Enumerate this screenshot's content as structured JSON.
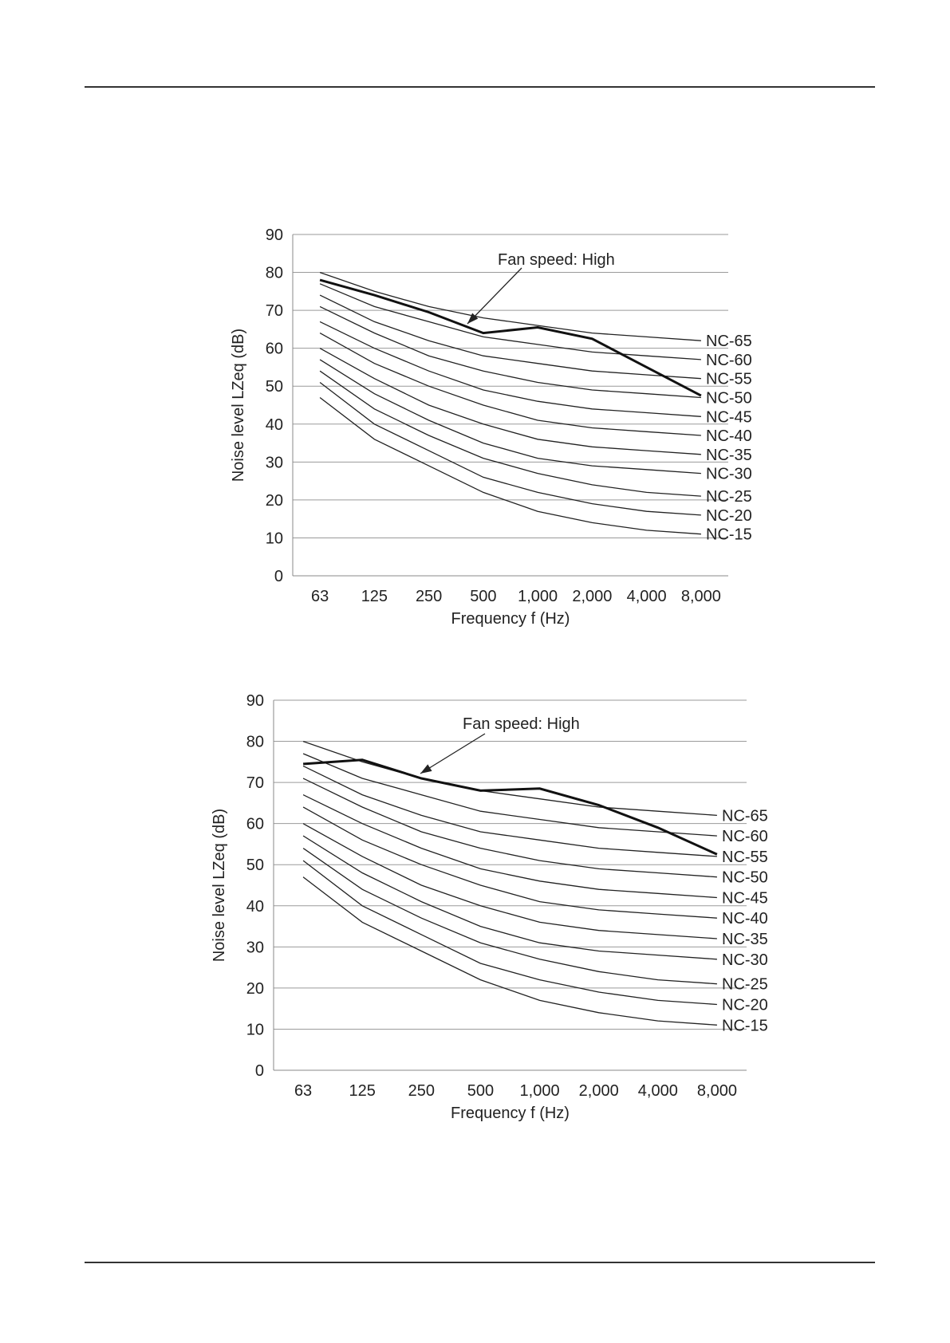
{
  "chart_data": [
    {
      "type": "line",
      "title": "",
      "xlabel": "Frequency f (Hz)",
      "ylabel": "Noise level LZeq (dB)",
      "ylim": [
        0,
        90
      ],
      "yticks": [
        "0",
        "10",
        "20",
        "30",
        "40",
        "50",
        "60",
        "70",
        "80",
        "90"
      ],
      "categories": [
        "63",
        "125",
        "250",
        "500",
        "1,000",
        "2,000",
        "4,000",
        "8,000"
      ],
      "grid": true,
      "annotation": "Fan speed: High",
      "measured": [
        78,
        74,
        69.5,
        64,
        65.5,
        62.5,
        55,
        47.5
      ],
      "series": [
        {
          "name": "NC-65",
          "values": [
            80,
            75,
            71,
            68,
            66,
            64,
            63,
            62
          ]
        },
        {
          "name": "NC-60",
          "values": [
            77,
            71,
            67,
            63,
            61,
            59,
            58,
            57
          ]
        },
        {
          "name": "NC-55",
          "values": [
            74,
            67,
            62,
            58,
            56,
            54,
            53,
            52
          ]
        },
        {
          "name": "NC-50",
          "values": [
            71,
            64,
            58,
            54,
            51,
            49,
            48,
            47
          ]
        },
        {
          "name": "NC-45",
          "values": [
            67,
            60,
            54,
            49,
            46,
            44,
            43,
            42
          ]
        },
        {
          "name": "NC-40",
          "values": [
            64,
            56,
            50,
            45,
            41,
            39,
            38,
            37
          ]
        },
        {
          "name": "NC-35",
          "values": [
            60,
            52,
            45,
            40,
            36,
            34,
            33,
            32
          ]
        },
        {
          "name": "NC-30",
          "values": [
            57,
            48,
            41,
            35,
            31,
            29,
            28,
            27
          ]
        },
        {
          "name": "NC-25",
          "values": [
            54,
            44,
            37,
            31,
            27,
            24,
            22,
            21
          ]
        },
        {
          "name": "NC-20",
          "values": [
            51,
            40,
            33,
            26,
            22,
            19,
            17,
            16
          ]
        },
        {
          "name": "NC-15",
          "values": [
            47,
            36,
            29,
            22,
            17,
            14,
            12,
            11
          ]
        }
      ]
    },
    {
      "type": "line",
      "title": "",
      "xlabel": "Frequency f (Hz)",
      "ylabel": "Noise level LZeq (dB)",
      "ylim": [
        0,
        90
      ],
      "yticks": [
        "0",
        "10",
        "20",
        "30",
        "40",
        "50",
        "60",
        "70",
        "80",
        "90"
      ],
      "categories": [
        "63",
        "125",
        "250",
        "500",
        "1,000",
        "2,000",
        "4,000",
        "8,000"
      ],
      "grid": true,
      "annotation": "Fan speed: High",
      "measured": [
        74.5,
        75.5,
        71,
        68,
        68.5,
        64.5,
        59,
        52.5
      ],
      "series": [
        {
          "name": "NC-65",
          "values": [
            80,
            75,
            71,
            68,
            66,
            64,
            63,
            62
          ]
        },
        {
          "name": "NC-60",
          "values": [
            77,
            71,
            67,
            63,
            61,
            59,
            58,
            57
          ]
        },
        {
          "name": "NC-55",
          "values": [
            74,
            67,
            62,
            58,
            56,
            54,
            53,
            52
          ]
        },
        {
          "name": "NC-50",
          "values": [
            71,
            64,
            58,
            54,
            51,
            49,
            48,
            47
          ]
        },
        {
          "name": "NC-45",
          "values": [
            67,
            60,
            54,
            49,
            46,
            44,
            43,
            42
          ]
        },
        {
          "name": "NC-40",
          "values": [
            64,
            56,
            50,
            45,
            41,
            39,
            38,
            37
          ]
        },
        {
          "name": "NC-35",
          "values": [
            60,
            52,
            45,
            40,
            36,
            34,
            33,
            32
          ]
        },
        {
          "name": "NC-30",
          "values": [
            57,
            48,
            41,
            35,
            31,
            29,
            28,
            27
          ]
        },
        {
          "name": "NC-25",
          "values": [
            54,
            44,
            37,
            31,
            27,
            24,
            22,
            21
          ]
        },
        {
          "name": "NC-20",
          "values": [
            51,
            40,
            33,
            26,
            22,
            19,
            17,
            16
          ]
        },
        {
          "name": "NC-15",
          "values": [
            47,
            36,
            29,
            22,
            17,
            14,
            12,
            11
          ]
        }
      ]
    }
  ]
}
